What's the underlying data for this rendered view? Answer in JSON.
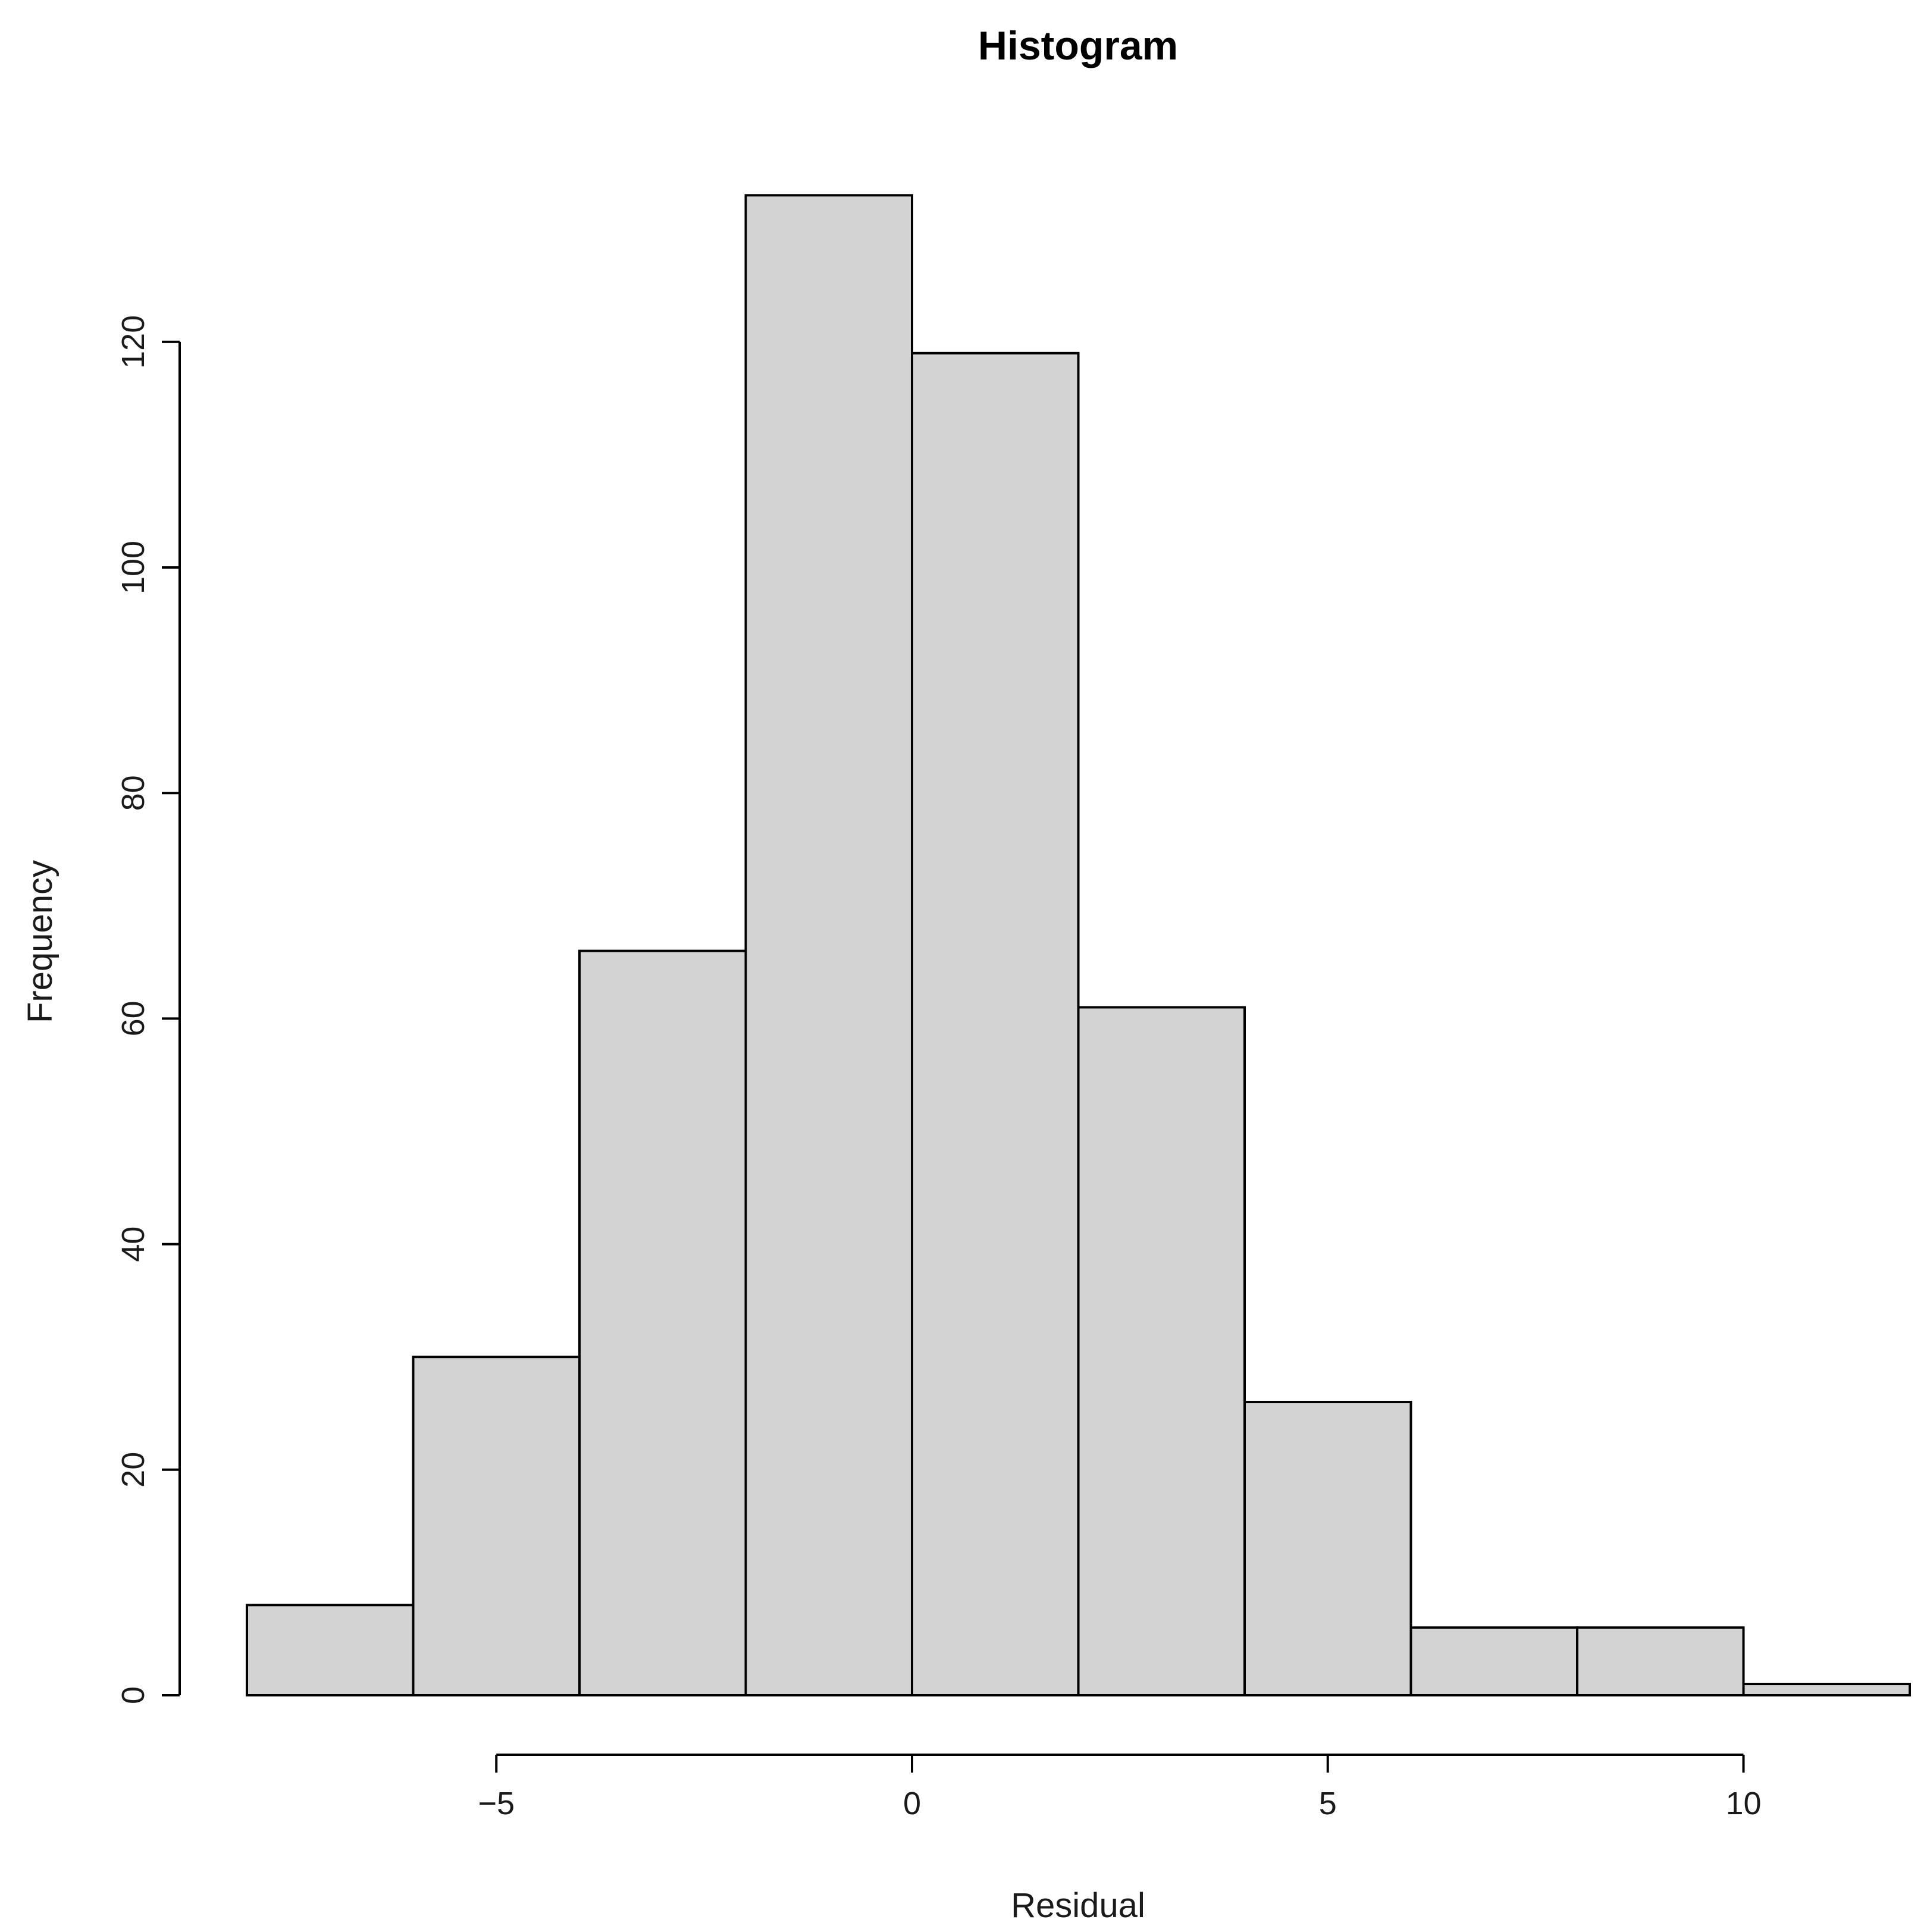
{
  "chart_data": {
    "type": "bar",
    "title": "Histogram",
    "xlabel": "Residual",
    "ylabel": "Frequency",
    "bins": [
      {
        "from": -8,
        "to": -6,
        "count": 8
      },
      {
        "from": -6,
        "to": -4,
        "count": 30
      },
      {
        "from": -4,
        "to": -2,
        "count": 66
      },
      {
        "from": -2,
        "to": 0,
        "count": 133
      },
      {
        "from": 0,
        "to": 2,
        "count": 119
      },
      {
        "from": 2,
        "to": 4,
        "count": 61
      },
      {
        "from": 4,
        "to": 6,
        "count": 26
      },
      {
        "from": 6,
        "to": 8,
        "count": 6
      },
      {
        "from": 8,
        "to": 10,
        "count": 6
      },
      {
        "from": 10,
        "to": 12,
        "count": 1
      }
    ],
    "xlim": [
      -8,
      12
    ],
    "ylim": [
      0,
      133
    ],
    "x_ticks": [
      {
        "value": -5,
        "label": "−5"
      },
      {
        "value": 0,
        "label": "0"
      },
      {
        "value": 5,
        "label": "5"
      },
      {
        "value": 10,
        "label": "10"
      }
    ],
    "y_ticks": [
      {
        "value": 0,
        "label": "0"
      },
      {
        "value": 20,
        "label": "20"
      },
      {
        "value": 40,
        "label": "40"
      },
      {
        "value": 60,
        "label": "60"
      },
      {
        "value": 80,
        "label": "80"
      },
      {
        "value": 100,
        "label": "100"
      },
      {
        "value": 120,
        "label": "120"
      }
    ],
    "bar_color": "#d3d3d3",
    "edge_color": "#000000",
    "grid": false,
    "legend": "none"
  }
}
